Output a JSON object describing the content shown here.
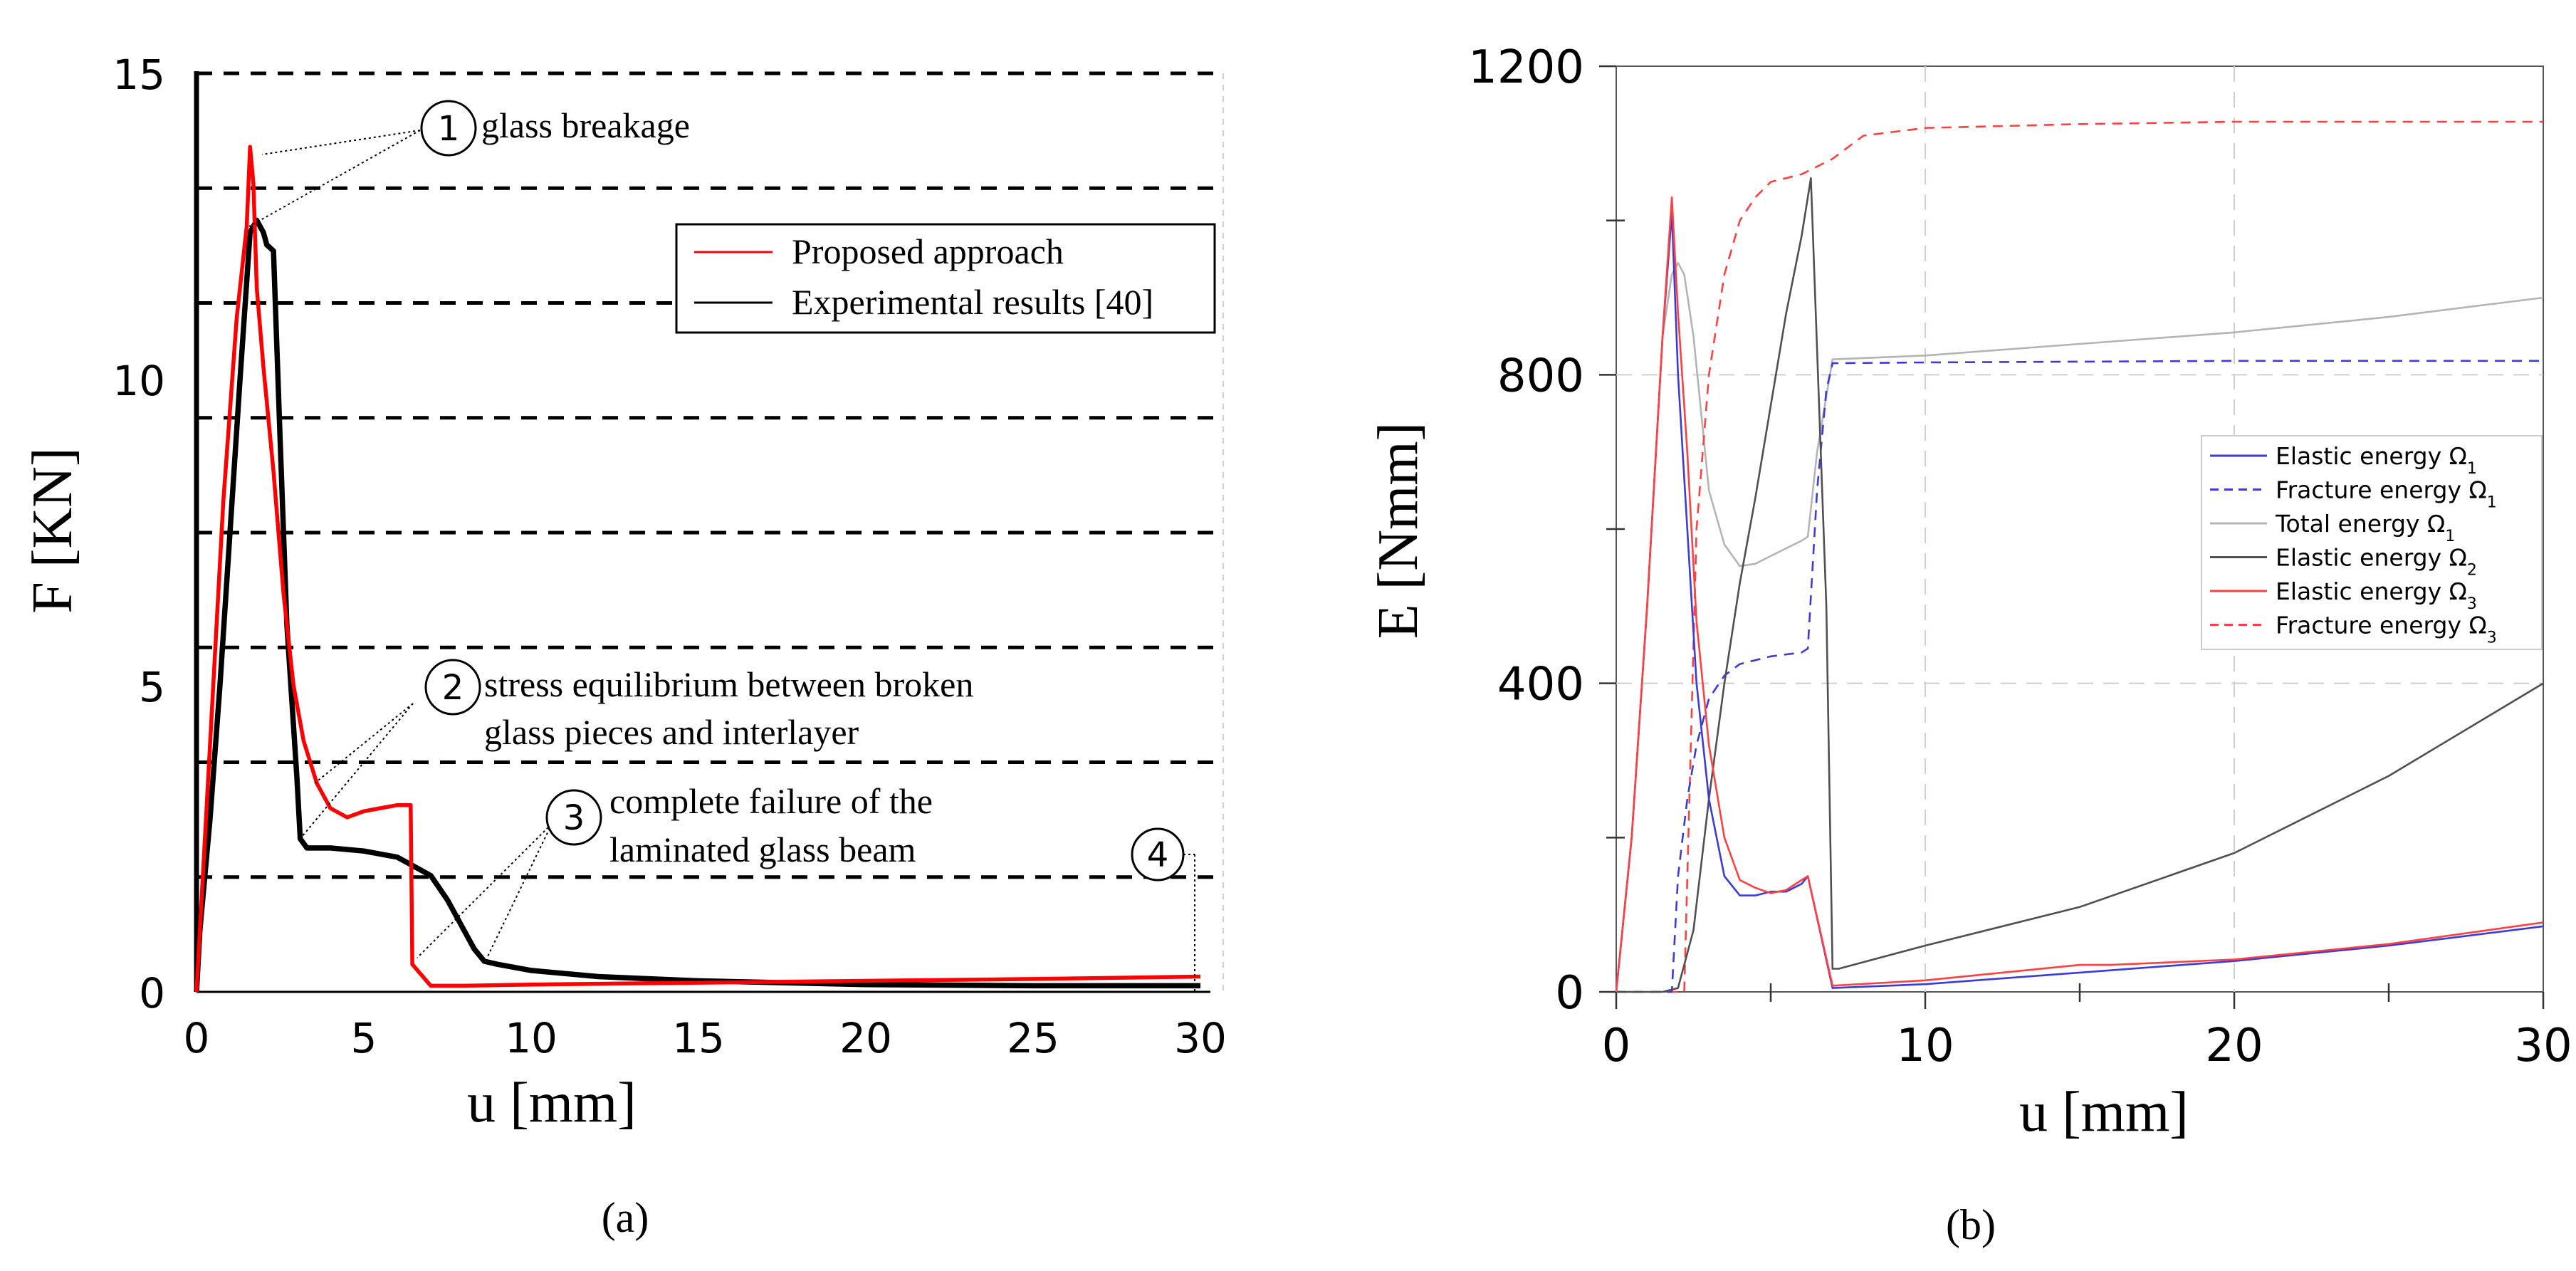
{
  "chart_data": [
    {
      "panel": "a",
      "type": "line",
      "caption": "(a)",
      "xlabel": "u [mm]",
      "ylabel": "F [KN]",
      "xlim": [
        0,
        30
      ],
      "ylim": [
        0,
        15
      ],
      "xticks": [
        "0",
        "5",
        "10",
        "15",
        "20",
        "25",
        "30"
      ],
      "yticks": [
        "0",
        "5",
        "10",
        "15"
      ],
      "legend": {
        "placement": "top-right",
        "entries": [
          "Proposed approach",
          "Experimental results [40]"
        ]
      },
      "series": [
        {
          "name": "Proposed approach",
          "color": "#ff0000",
          "x": [
            0,
            0.4,
            0.8,
            1.2,
            1.5,
            1.6,
            1.7,
            1.8,
            2.0,
            2.3,
            2.6,
            2.9,
            3.2,
            3.6,
            4.0,
            4.5,
            5.0,
            5.5,
            6.0,
            6.4,
            6.45,
            7.0,
            8,
            10,
            15,
            20,
            25,
            30
          ],
          "y": [
            0,
            4.0,
            8.0,
            11.0,
            12.5,
            13.8,
            13.2,
            11.5,
            10.2,
            8.5,
            6.5,
            5.0,
            4.1,
            3.4,
            3.0,
            2.85,
            2.95,
            3.0,
            3.05,
            3.05,
            0.45,
            0.1,
            0.1,
            0.12,
            0.15,
            0.18,
            0.21,
            0.25
          ]
        },
        {
          "name": "Experimental results [40]",
          "color": "#000000",
          "x": [
            0,
            0.1,
            0.2,
            0.4,
            0.7,
            1.0,
            1.3,
            1.6,
            1.8,
            2.0,
            2.1,
            2.3,
            2.5,
            2.7,
            3.0,
            3.1,
            3.3,
            4.0,
            5.0,
            6.0,
            7.0,
            7.5,
            8.0,
            8.3,
            8.6,
            9.0,
            10,
            12,
            15,
            20,
            25,
            30
          ],
          "y": [
            0,
            1.0,
            1.6,
            2.8,
            5.0,
            7.5,
            10.0,
            12.4,
            12.6,
            12.4,
            12.2,
            12.1,
            9.0,
            6.0,
            3.5,
            2.5,
            2.35,
            2.35,
            2.3,
            2.2,
            1.9,
            1.5,
            1.0,
            0.7,
            0.5,
            0.45,
            0.35,
            0.25,
            0.18,
            0.12,
            0.1,
            0.1
          ]
        }
      ],
      "annotations": [
        {
          "number": "1",
          "lines": [
            "glass breakage"
          ]
        },
        {
          "number": "2",
          "lines": [
            "stress equilibrium between broken",
            "glass pieces and interlayer"
          ]
        },
        {
          "number": "3",
          "lines": [
            "complete failure of the",
            "laminated glass beam"
          ]
        },
        {
          "number": "4",
          "lines": []
        }
      ]
    },
    {
      "panel": "b",
      "type": "line",
      "caption": "(b)",
      "xlabel": "u [mm]",
      "ylabel": "E [Nmm]",
      "xlim": [
        0,
        30
      ],
      "ylim": [
        0,
        1200
      ],
      "xticks": [
        "0",
        "10",
        "20",
        "30"
      ],
      "yticks": [
        "0",
        "400",
        "800",
        "1200"
      ],
      "legend": {
        "placement": "center-right"
      },
      "series": [
        {
          "name": "Elastic energy Ω",
          "sub": "1",
          "color": "#3b3bdb",
          "dash": "solid",
          "x": [
            0,
            0.5,
            1.0,
            1.5,
            1.8,
            2.0,
            2.3,
            2.6,
            3.0,
            3.5,
            4.0,
            4.5,
            5.0,
            5.5,
            6.0,
            6.2,
            7.0,
            10,
            15,
            20,
            25,
            30
          ],
          "y": [
            0,
            200,
            500,
            850,
            1010,
            800,
            600,
            400,
            250,
            150,
            125,
            125,
            130,
            130,
            140,
            150,
            5,
            10,
            25,
            40,
            60,
            85
          ]
        },
        {
          "name": "Fracture energy Ω",
          "sub": "1",
          "color": "#3b3bdb",
          "dash": "dashed",
          "x": [
            0,
            1.8,
            2.0,
            2.3,
            2.6,
            3.0,
            3.5,
            4.0,
            5.0,
            6.0,
            6.2,
            6.5,
            6.8,
            7.0,
            10,
            20,
            30
          ],
          "y": [
            0,
            0,
            150,
            250,
            320,
            380,
            410,
            425,
            435,
            440,
            445,
            650,
            780,
            815,
            816,
            818,
            818
          ]
        },
        {
          "name": "Total energy Ω",
          "sub": "1",
          "color": "#b4b4b4",
          "dash": "solid",
          "x": [
            0,
            0.5,
            1.0,
            1.5,
            1.8,
            2.0,
            2.2,
            2.5,
            3.0,
            3.5,
            4.0,
            4.5,
            5.0,
            5.5,
            6.0,
            6.2,
            6.5,
            7.0,
            10,
            15,
            20,
            25,
            30
          ],
          "y": [
            0,
            200,
            500,
            850,
            930,
            945,
            930,
            850,
            650,
            580,
            552,
            555,
            565,
            575,
            585,
            590,
            700,
            820,
            825,
            840,
            855,
            875,
            900
          ]
        },
        {
          "name": "Elastic energy Ω",
          "sub": "2",
          "color": "#505050",
          "dash": "solid",
          "x": [
            0,
            1.5,
            2.0,
            2.5,
            3.0,
            3.5,
            4.0,
            4.5,
            5.0,
            5.5,
            6.0,
            6.3,
            6.8,
            7.0,
            7.2,
            10,
            15,
            20,
            25,
            30
          ],
          "y": [
            0,
            0,
            5,
            80,
            250,
            400,
            530,
            640,
            760,
            880,
            980,
            1055,
            500,
            30,
            30,
            60,
            110,
            180,
            280,
            400
          ]
        },
        {
          "name": "Elastic energy Ω",
          "sub": "3",
          "color": "#ff4040",
          "dash": "solid",
          "x": [
            0,
            0.5,
            1.0,
            1.5,
            1.8,
            2.0,
            2.3,
            2.6,
            3.0,
            3.5,
            4.0,
            4.5,
            5.0,
            5.5,
            6.0,
            6.2,
            7.0,
            10,
            15,
            16,
            20,
            25,
            30
          ],
          "y": [
            0,
            200,
            500,
            850,
            1030,
            880,
            700,
            480,
            320,
            200,
            145,
            135,
            128,
            132,
            145,
            150,
            8,
            15,
            35,
            35,
            42,
            62,
            90
          ]
        },
        {
          "name": "Fracture energy Ω",
          "sub": "3",
          "color": "#ff4040",
          "dash": "dashed",
          "x": [
            0,
            2.2,
            2.4,
            2.6,
            3.0,
            3.5,
            4.0,
            4.5,
            5.0,
            6.0,
            7.0,
            8.0,
            10,
            15,
            20,
            25,
            30
          ],
          "y": [
            0,
            0,
            300,
            600,
            800,
            930,
            1000,
            1030,
            1050,
            1060,
            1080,
            1110,
            1120,
            1125,
            1128,
            1128,
            1128
          ]
        }
      ]
    }
  ]
}
